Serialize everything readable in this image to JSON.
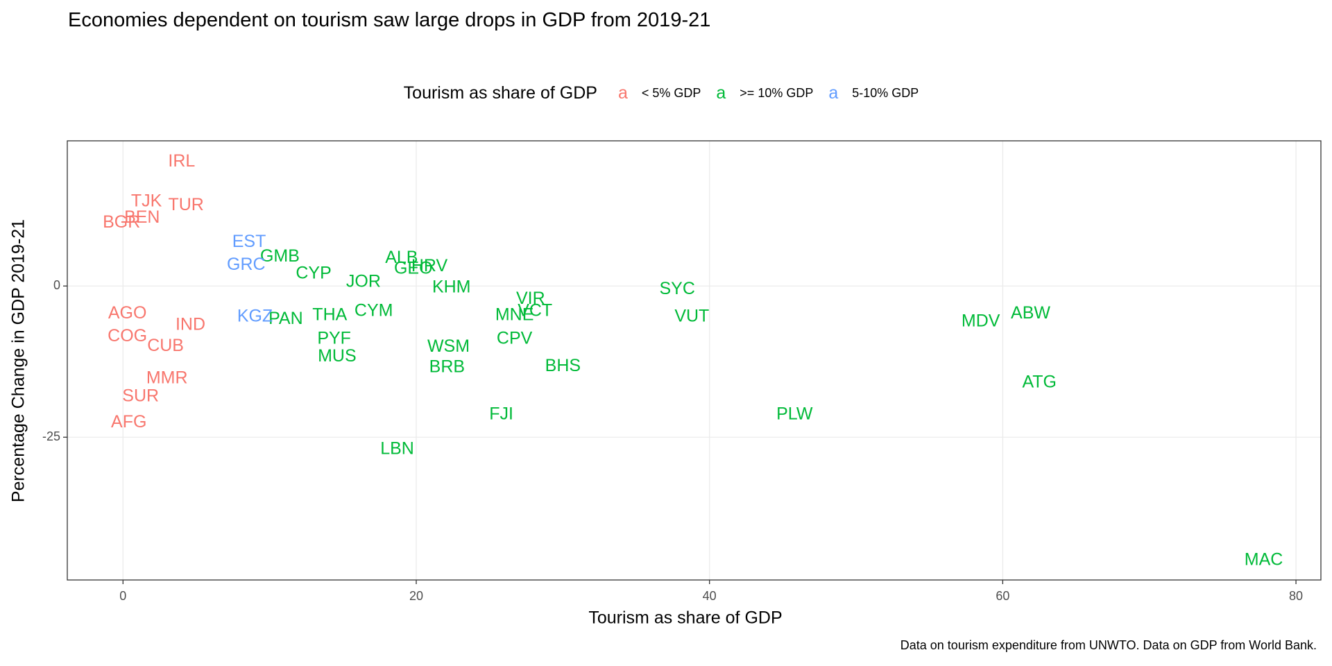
{
  "chart_data": {
    "type": "text-scatter",
    "title": "Economies dependent on tourism saw large drops in GDP from 2019-21",
    "legend_title": "Tourism as share of GDP",
    "x_label": "Tourism as share of GDP",
    "y_label": "Percentage Change in GDP 2019-21",
    "caption": "Data on tourism expenditure from UNWTO.  Data on GDP from World Bank.",
    "xlim": [
      -3.8,
      81.7
    ],
    "ylim": [
      -48.6,
      24.0
    ],
    "xticks": [
      0,
      20,
      40,
      60,
      80
    ],
    "yticks": [
      -25,
      0
    ],
    "grid": true,
    "series": [
      {
        "name": "< 5% GDP",
        "color": "#F8766D",
        "labels": [
          "IRL",
          "TJK",
          "TUR",
          "BEN",
          "BGR",
          "AGO",
          "IND",
          "COG",
          "CUB",
          "MMR",
          "SUR",
          "AFG"
        ],
        "x": [
          4.0,
          1.6,
          4.3,
          1.3,
          -0.1,
          0.3,
          4.6,
          0.3,
          2.9,
          3.0,
          1.2,
          0.4
        ],
        "y": [
          20.5,
          13.9,
          13.3,
          11.2,
          10.4,
          -4.6,
          -6.5,
          -8.4,
          -10.0,
          -15.3,
          -18.3,
          -22.6
        ]
      },
      {
        "name": ">= 10% GDP",
        "color": "#00BA38",
        "labels": [
          "GMB",
          "ALB",
          "GEO",
          "HRV",
          "CYP",
          "JOR",
          "KHM",
          "SYC",
          "VIR",
          "VCT",
          "MNE",
          "CYM",
          "THA",
          "PAN",
          "VUT",
          "MDV",
          "ABW",
          "PYF",
          "MUS",
          "CPV",
          "WSM",
          "BRB",
          "BHS",
          "ATG",
          "FJI",
          "PLW",
          "LBN",
          "MAC"
        ],
        "x": [
          10.7,
          19.0,
          19.8,
          20.9,
          13.0,
          16.4,
          22.4,
          37.8,
          27.8,
          28.1,
          26.7,
          17.1,
          14.1,
          11.1,
          38.8,
          58.5,
          61.9,
          14.4,
          14.6,
          26.7,
          22.2,
          22.1,
          30.0,
          62.5,
          25.8,
          45.8,
          18.7,
          77.8
        ],
        "y": [
          4.8,
          4.6,
          2.8,
          3.2,
          2.0,
          0.6,
          -0.3,
          -0.6,
          -2.2,
          -4.2,
          -4.9,
          -4.2,
          -4.9,
          -5.5,
          -5.1,
          -5.9,
          -4.6,
          -8.8,
          -11.7,
          -8.8,
          -10.1,
          -13.5,
          -13.3,
          -16.0,
          -21.3,
          -21.3,
          -27.0,
          -45.4
        ]
      },
      {
        "name": "5-10% GDP",
        "color": "#619CFF",
        "labels": [
          "EST",
          "GRC",
          "KGZ"
        ],
        "x": [
          8.6,
          8.4,
          9.0
        ],
        "y": [
          7.2,
          3.4,
          -5.1
        ]
      }
    ]
  }
}
